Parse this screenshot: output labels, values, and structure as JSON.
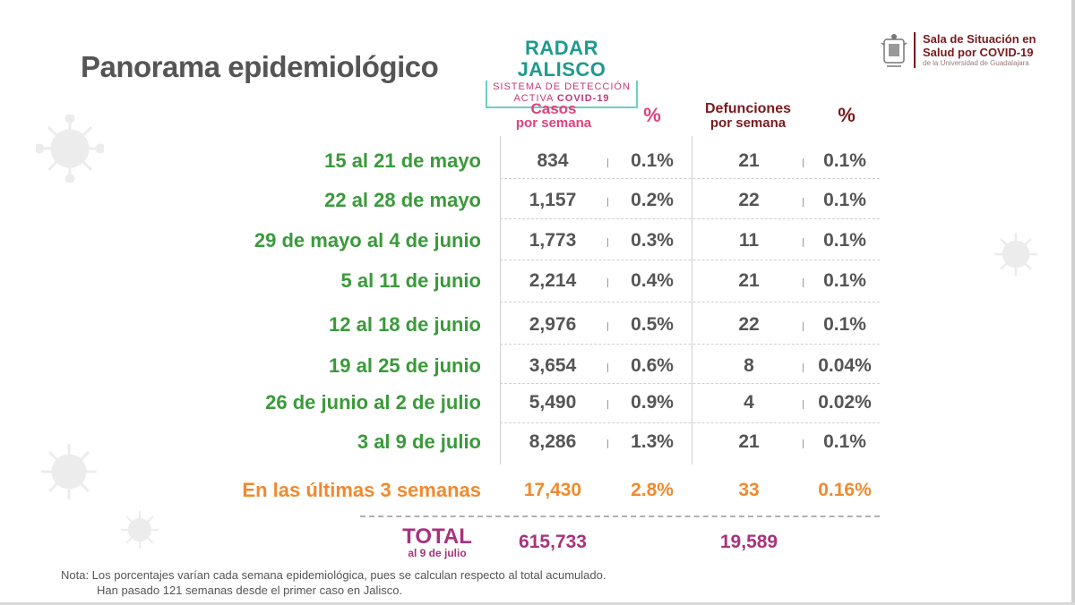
{
  "title": "Panorama epidemiológico",
  "radar": {
    "name": "RADAR JALISCO",
    "line1": "SISTEMA DE DETECCIÓN",
    "line2_prefix": "ACTIVA ",
    "line2_strong": "COVID-19"
  },
  "sala": {
    "line1": "Sala de Situación en",
    "line2": "Salud por COVID-19",
    "line3": "de la Universidad de Guadalajara"
  },
  "headers": {
    "casos_1": "Casos",
    "casos_2": "por semana",
    "pct_casos": "%",
    "def_1": "Defunciones",
    "def_2": "por semana",
    "pct_def": "%"
  },
  "rows": [
    {
      "period": "15 al 21 de mayo",
      "casos": "834",
      "pct_casos": "0.1%",
      "defunciones": "21",
      "pct_def": "0.1%"
    },
    {
      "period": "22 al 28 de mayo",
      "casos": "1,157",
      "pct_casos": "0.2%",
      "defunciones": "22",
      "pct_def": "0.1%"
    },
    {
      "period": "29 de mayo al 4 de junio",
      "casos": "1,773",
      "pct_casos": "0.3%",
      "defunciones": "11",
      "pct_def": "0.1%"
    },
    {
      "period": "5 al 11 de junio",
      "casos": "2,214",
      "pct_casos": "0.4%",
      "defunciones": "21",
      "pct_def": "0.1%"
    },
    {
      "period": "12 al 18 de junio",
      "casos": "2,976",
      "pct_casos": "0.5%",
      "defunciones": "22",
      "pct_def": "0.1%"
    },
    {
      "period": "19 al 25 de junio",
      "casos": "3,654",
      "pct_casos": "0.6%",
      "defunciones": "8",
      "pct_def": "0.04%"
    },
    {
      "period": "26 de junio al 2 de julio",
      "casos": "5,490",
      "pct_casos": "0.9%",
      "defunciones": "4",
      "pct_def": "0.02%"
    },
    {
      "period": "3 al 9 de julio",
      "casos": "8,286",
      "pct_casos": "1.3%",
      "defunciones": "21",
      "pct_def": "0.1%"
    }
  ],
  "last3": {
    "period": "En las últimas 3 semanas",
    "casos": "17,430",
    "pct_casos": "2.8%",
    "defunciones": "33",
    "pct_def": "0.16%"
  },
  "total": {
    "label": "TOTAL",
    "sub": "al 9 de julio",
    "casos": "615,733",
    "defunciones": "19,589"
  },
  "nota": {
    "line1": "Nota: Los porcentajes varían cada semana epidemiológica, pues se calculan respecto al total acumulado.",
    "line2": "Han pasado 121 semanas desde el primer caso en Jalisco."
  },
  "colors": {
    "period_green": "#3a9a3a",
    "casos_pink": "#e0407e",
    "defunciones_maroon": "#7a1a1e",
    "last3_orange": "#f08a2e",
    "total_purple": "#a8327d",
    "radar_teal": "#1f9a8f"
  },
  "icons": [
    "virus-icon",
    "university-seal-icon"
  ]
}
